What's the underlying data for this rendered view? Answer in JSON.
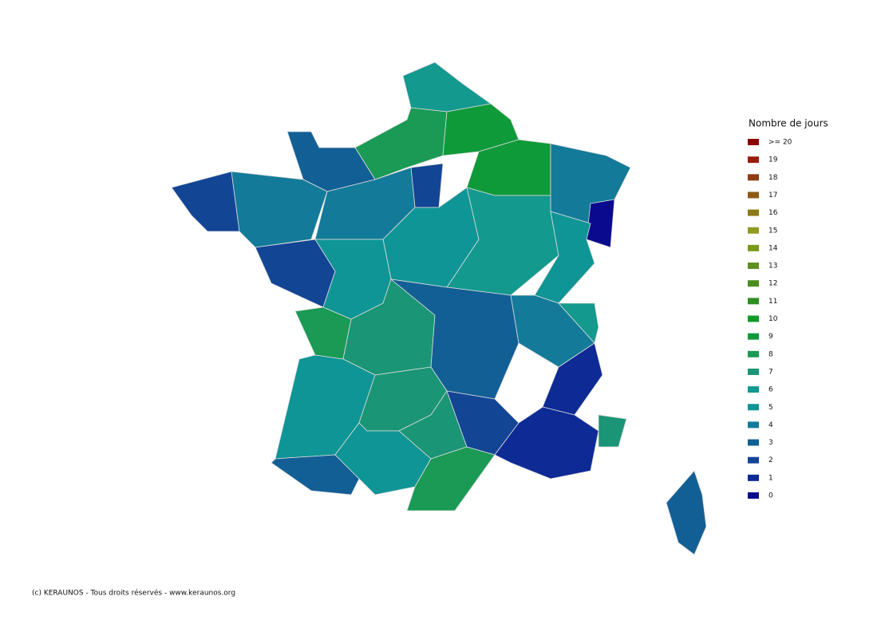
{
  "map": {
    "values": [
      6,
      8,
      9,
      9,
      4,
      0,
      2,
      3,
      2,
      4,
      4,
      5,
      6,
      5,
      2,
      5,
      8,
      7,
      3,
      4,
      1,
      5,
      7,
      7,
      2,
      1,
      7,
      3,
      5,
      8,
      6,
      3
    ]
  },
  "legend": {
    "title": "Nombre de jours",
    "items": [
      {
        "value": 20,
        "label": ">= 20",
        "color": "#8b0000"
      },
      {
        "value": 19,
        "color": "#9b1b0a"
      },
      {
        "value": 18,
        "color": "#8f3d12"
      },
      {
        "value": 17,
        "color": "#8f5a14"
      },
      {
        "value": 16,
        "color": "#8b7a18"
      },
      {
        "value": 15,
        "color": "#8f9a1f"
      },
      {
        "value": 14,
        "color": "#7a9a1a"
      },
      {
        "value": 13,
        "color": "#5f8f1e"
      },
      {
        "value": 12,
        "color": "#4a8f1e"
      },
      {
        "value": 11,
        "color": "#2f8f22"
      },
      {
        "value": 10,
        "color": "#109a2a"
      },
      {
        "value": 9,
        "color": "#0f9a3a"
      },
      {
        "value": 8,
        "color": "#1a9a55"
      },
      {
        "value": 7,
        "color": "#1a9575"
      },
      {
        "value": 6,
        "color": "#14998f"
      },
      {
        "value": 5,
        "color": "#0f9595"
      },
      {
        "value": 4,
        "color": "#137a9a"
      },
      {
        "value": 3,
        "color": "#125f95"
      },
      {
        "value": 2,
        "color": "#134595"
      },
      {
        "value": 1,
        "color": "#0d2a95"
      },
      {
        "value": 0,
        "color": "#0a0a8f"
      }
    ]
  },
  "footer": "(c) KERAUNOS - Tous droits réservés - www.keraunos.org"
}
